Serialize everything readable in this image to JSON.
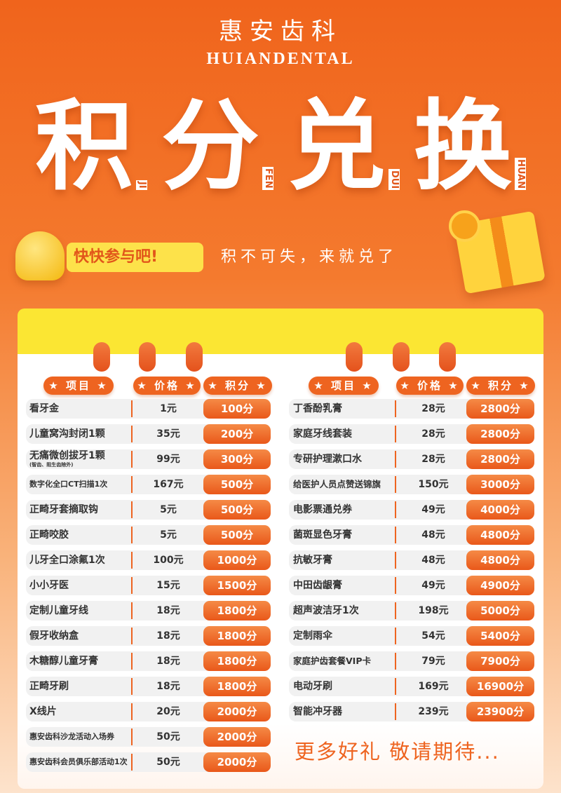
{
  "brand": {
    "name_cn": "惠安齿科",
    "name_en": "HUIANDENTAL"
  },
  "title": {
    "chars": [
      "积",
      "分",
      "兑",
      "换"
    ],
    "pinyin": [
      "JI",
      "FEN",
      "DUI",
      "HUAN"
    ]
  },
  "cta": {
    "button": "快快参与吧!",
    "slogan": "积不可失，来就兑了"
  },
  "headers": {
    "item": "★ 项目 ★",
    "price": "★ 价格 ★",
    "points": "★ 积分 ★"
  },
  "left_items": [
    {
      "name": "看牙金",
      "price": "1元",
      "points": "100分"
    },
    {
      "name": "儿童窝沟封闭1颗",
      "price": "35元",
      "points": "200分"
    },
    {
      "name": "无痛微创拔牙1颗",
      "note": "(智齿、阻生齿除外)",
      "price": "99元",
      "points": "300分"
    },
    {
      "name": "数字化全口CT扫描1次",
      "price": "167元",
      "points": "500分"
    },
    {
      "name": "正畸牙套摘取钩",
      "price": "5元",
      "points": "500分"
    },
    {
      "name": "正畸咬胶",
      "price": "5元",
      "points": "500分"
    },
    {
      "name": "儿牙全口涂氟1次",
      "price": "100元",
      "points": "1000分"
    },
    {
      "name": "小小牙医",
      "price": "15元",
      "points": "1500分"
    },
    {
      "name": "定制儿童牙线",
      "price": "18元",
      "points": "1800分"
    },
    {
      "name": "假牙收纳盒",
      "price": "18元",
      "points": "1800分"
    },
    {
      "name": "木糖醇儿童牙膏",
      "price": "18元",
      "points": "1800分"
    },
    {
      "name": "正畸牙刷",
      "price": "18元",
      "points": "1800分"
    },
    {
      "name": "X线片",
      "price": "20元",
      "points": "2000分"
    },
    {
      "name": "惠安齿科沙龙活动入场券",
      "price": "50元",
      "points": "2000分"
    },
    {
      "name": "惠安齿科会员俱乐部活动1次",
      "price": "50元",
      "points": "2000分"
    }
  ],
  "right_items": [
    {
      "name": "丁香酚乳膏",
      "price": "28元",
      "points": "2800分"
    },
    {
      "name": "家庭牙线套装",
      "price": "28元",
      "points": "2800分"
    },
    {
      "name": "专研护理漱口水",
      "price": "28元",
      "points": "2800分"
    },
    {
      "name": "给医护人员点赞送锦旗",
      "price": "150元",
      "points": "3000分"
    },
    {
      "name": "电影票通兑券",
      "price": "49元",
      "points": "4000分"
    },
    {
      "name": "菌斑显色牙膏",
      "price": "48元",
      "points": "4800分"
    },
    {
      "name": "抗敏牙膏",
      "price": "48元",
      "points": "4800分"
    },
    {
      "name": "中田齿龈膏",
      "price": "49元",
      "points": "4900分"
    },
    {
      "name": "超声波洁牙1次",
      "price": "198元",
      "points": "5000分"
    },
    {
      "name": "定制雨伞",
      "price": "54元",
      "points": "5400分"
    },
    {
      "name": "家庭护齿套餐VIP卡",
      "price": "79元",
      "points": "7900分"
    },
    {
      "name": "电动牙刷",
      "price": "169元",
      "points": "16900分"
    },
    {
      "name": "智能冲牙器",
      "price": "239元",
      "points": "23900分"
    }
  ],
  "footer": "更多好礼 敬请期待...",
  "colors": {
    "primary": "#ee6420",
    "accent_yellow": "#fbe633",
    "text": "#333333"
  }
}
